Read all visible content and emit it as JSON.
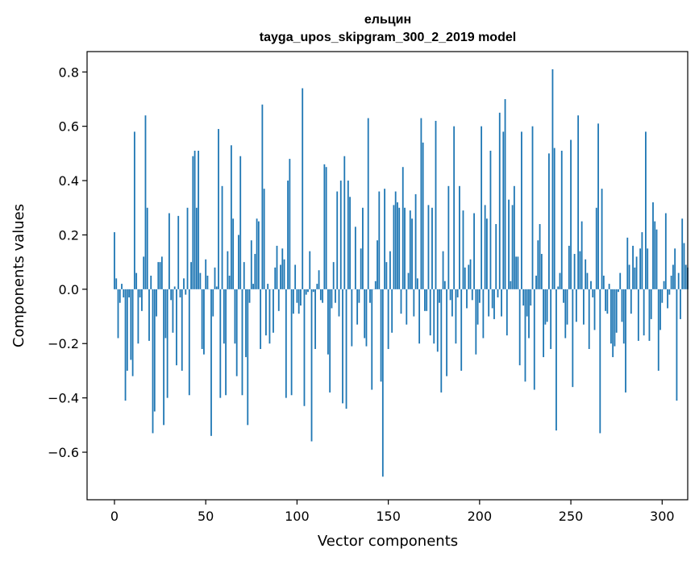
{
  "chart_data": {
    "type": "bar",
    "title": "ельцин",
    "subtitle": "tayga_upos_skipgram_300_2_2019 model",
    "xlabel": "Vector components",
    "ylabel": "Components values",
    "xlim": [
      -15,
      314
    ],
    "ylim": [
      -0.775,
      0.875
    ],
    "xticks": [
      0,
      50,
      100,
      150,
      200,
      250,
      300
    ],
    "xtick_labels": [
      "0",
      "50",
      "100",
      "150",
      "200",
      "250",
      "300"
    ],
    "yticks": [
      -0.6,
      -0.4,
      -0.2,
      0.0,
      0.2,
      0.4,
      0.6,
      0.8
    ],
    "ytick_labels": [
      "−0.6",
      "−0.4",
      "−0.2",
      "0.0",
      "0.2",
      "0.4",
      "0.6",
      "0.8"
    ],
    "grid": false,
    "bar_color": "#1f77b4",
    "x_start": 0,
    "values": [
      0.21,
      0.04,
      -0.18,
      -0.05,
      0.02,
      -0.03,
      -0.41,
      -0.3,
      -0.03,
      -0.26,
      -0.32,
      0.58,
      0.06,
      -0.2,
      -0.03,
      -0.08,
      0.12,
      0.64,
      0.3,
      -0.19,
      0.05,
      -0.53,
      -0.45,
      -0.1,
      0.1,
      0.1,
      0.12,
      -0.5,
      -0.18,
      -0.4,
      0.28,
      -0.04,
      -0.16,
      0.01,
      -0.28,
      0.27,
      -0.03,
      -0.3,
      0.04,
      -0.02,
      0.3,
      -0.39,
      0.1,
      0.49,
      0.51,
      0.3,
      0.51,
      0.06,
      -0.22,
      -0.24,
      0.11,
      0.05,
      0.0,
      -0.54,
      -0.1,
      0.08,
      0.01,
      0.59,
      -0.4,
      0.38,
      -0.2,
      -0.39,
      0.14,
      0.05,
      0.53,
      0.26,
      -0.2,
      -0.32,
      0.2,
      0.49,
      -0.39,
      0.1,
      -0.25,
      -0.5,
      -0.05,
      0.18,
      0.02,
      0.13,
      0.26,
      0.25,
      -0.22,
      0.68,
      0.37,
      -0.17,
      0.02,
      -0.2,
      0.0,
      -0.16,
      0.08,
      0.16,
      -0.08,
      0.09,
      0.15,
      0.11,
      -0.4,
      0.4,
      0.48,
      -0.39,
      -0.09,
      0.09,
      -0.05,
      -0.09,
      -0.06,
      0.74,
      -0.43,
      -0.02,
      -0.01,
      0.14,
      -0.56,
      -0.01,
      -0.22,
      0.02,
      0.07,
      -0.04,
      -0.05,
      0.46,
      0.45,
      -0.24,
      -0.38,
      -0.07,
      0.1,
      -0.05,
      0.36,
      -0.1,
      0.4,
      -0.42,
      0.49,
      -0.44,
      0.4,
      0.34,
      -0.21,
      0.0,
      0.23,
      -0.13,
      -0.05,
      0.15,
      0.3,
      -0.18,
      -0.21,
      0.63,
      -0.05,
      -0.37,
      0.0,
      0.03,
      0.18,
      0.36,
      -0.34,
      -0.69,
      0.37,
      0.1,
      -0.22,
      0.14,
      -0.16,
      0.31,
      0.36,
      0.32,
      0.3,
      -0.09,
      0.45,
      0.3,
      -0.13,
      0.06,
      0.29,
      0.26,
      -0.1,
      0.35,
      0.04,
      -0.2,
      0.63,
      0.54,
      -0.08,
      -0.08,
      0.31,
      -0.17,
      0.3,
      -0.2,
      0.62,
      -0.23,
      -0.05,
      -0.38,
      0.14,
      0.03,
      -0.32,
      0.38,
      -0.04,
      -0.1,
      0.6,
      -0.2,
      -0.03,
      0.38,
      -0.3,
      0.29,
      0.08,
      -0.07,
      0.09,
      0.11,
      -0.04,
      0.28,
      -0.24,
      -0.13,
      -0.05,
      0.6,
      -0.18,
      0.31,
      0.26,
      -0.1,
      0.51,
      -0.07,
      -0.11,
      0.24,
      -0.03,
      0.65,
      -0.1,
      0.58,
      0.7,
      -0.17,
      0.33,
      0.03,
      0.31,
      0.38,
      0.12,
      0.12,
      -0.28,
      0.58,
      -0.06,
      -0.34,
      -0.1,
      -0.18,
      -0.06,
      0.6,
      -0.37,
      0.05,
      0.18,
      0.24,
      0.13,
      -0.25,
      -0.13,
      -0.12,
      0.5,
      -0.22,
      0.81,
      0.52,
      -0.52,
      0.01,
      0.06,
      0.51,
      -0.05,
      -0.18,
      -0.13,
      0.16,
      0.55,
      -0.36,
      0.13,
      -0.12,
      0.64,
      0.14,
      0.25,
      -0.13,
      0.11,
      0.06,
      -0.22,
      0.03,
      -0.03,
      -0.15,
      0.3,
      0.61,
      -0.53,
      0.37,
      0.05,
      -0.08,
      -0.09,
      0.02,
      -0.2,
      -0.25,
      -0.21,
      -0.16,
      -0.01,
      0.06,
      -0.12,
      -0.2,
      -0.38,
      0.19,
      0.09,
      -0.09,
      0.16,
      0.08,
      0.12,
      -0.19,
      0.15,
      0.21,
      -0.17,
      0.58,
      0.15,
      -0.19,
      -0.11,
      0.32,
      0.25,
      0.22,
      -0.3,
      -0.15,
      -0.05,
      0.03,
      0.28,
      -0.07,
      -0.02,
      0.05,
      0.09,
      0.15,
      -0.41,
      0.06,
      -0.11,
      0.26,
      0.17,
      0.09,
      0.08
    ]
  }
}
